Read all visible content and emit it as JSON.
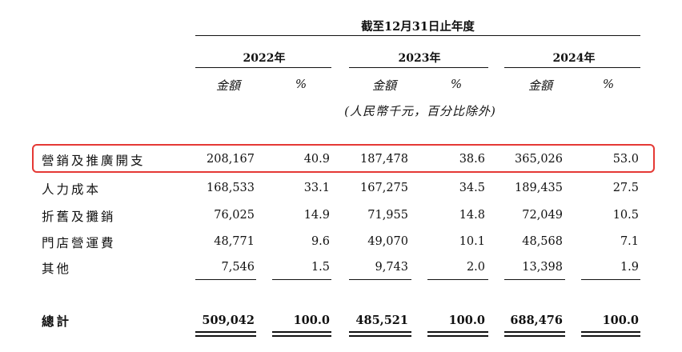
{
  "header": {
    "period_title": "截至12月31日止年度",
    "years": [
      "2022年",
      "2023年",
      "2024年"
    ],
    "amount_label": "金額",
    "pct_label": "%",
    "unit_note": "(人民幣千元，百分比除外)"
  },
  "rows": [
    {
      "label": "營銷及推廣開支",
      "values": [
        "208,167",
        "40.9",
        "187,478",
        "38.6",
        "365,026",
        "53.0"
      ]
    },
    {
      "label": "人力成本",
      "values": [
        "168,533",
        "33.1",
        "167,275",
        "34.5",
        "189,435",
        "27.5"
      ]
    },
    {
      "label": "折舊及攤銷",
      "values": [
        "76,025",
        "14.9",
        "71,955",
        "14.8",
        "72,049",
        "10.5"
      ]
    },
    {
      "label": "門店營運費",
      "values": [
        "48,771",
        "9.6",
        "49,070",
        "10.1",
        "48,568",
        "7.1"
      ]
    },
    {
      "label": "其他",
      "values": [
        "7,546",
        "1.5",
        "9,743",
        "2.0",
        "13,398",
        "1.9"
      ]
    }
  ],
  "total": {
    "label": "總計",
    "values": [
      "509,042",
      "100.0",
      "485,521",
      "100.0",
      "688,476",
      "100.0"
    ]
  },
  "highlight_color": "#e53935"
}
